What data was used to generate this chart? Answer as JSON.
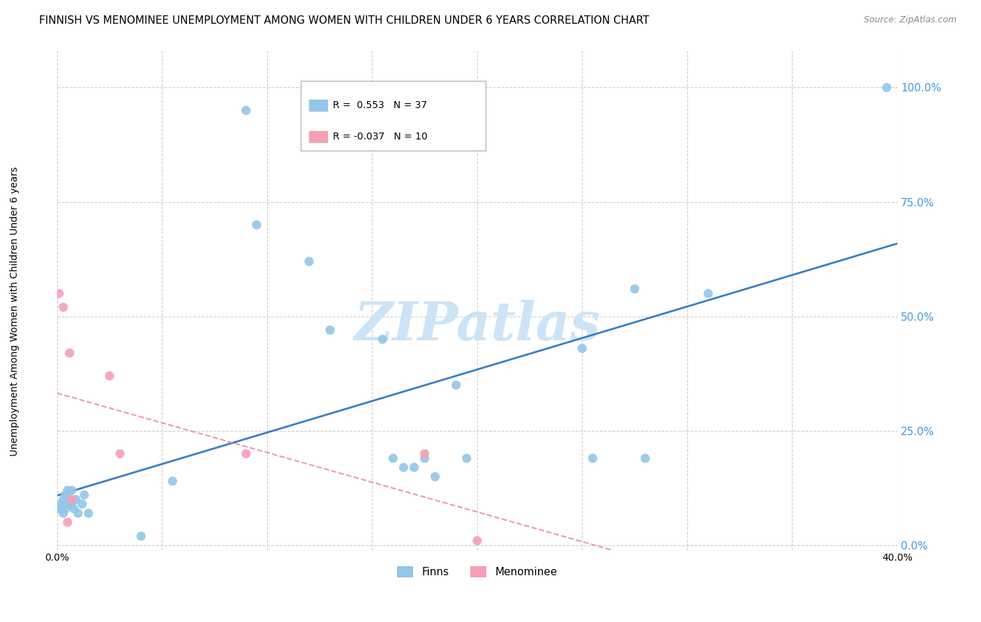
{
  "title": "FINNISH VS MENOMINEE UNEMPLOYMENT AMONG WOMEN WITH CHILDREN UNDER 6 YEARS CORRELATION CHART",
  "source": "Source: ZipAtlas.com",
  "ylabel": "Unemployment Among Women with Children Under 6 years",
  "xlabel": "",
  "watermark": "ZIPatlas",
  "xlim": [
    0.0,
    0.4
  ],
  "ylim": [
    -0.01,
    1.08
  ],
  "xticks": [
    0.0,
    0.05,
    0.1,
    0.15,
    0.2,
    0.25,
    0.3,
    0.35,
    0.4
  ],
  "yticks": [
    0.0,
    0.25,
    0.5,
    0.75,
    1.0
  ],
  "ytick_labels": [
    "0.0%",
    "25.0%",
    "50.0%",
    "75.0%",
    "100.0%"
  ],
  "xtick_labels": [
    "0.0%",
    "",
    "",
    "",
    "",
    "",
    "",
    "",
    "40.0%"
  ],
  "finns_x": [
    0.001,
    0.002,
    0.003,
    0.003,
    0.004,
    0.004,
    0.005,
    0.005,
    0.006,
    0.007,
    0.007,
    0.008,
    0.009,
    0.01,
    0.012,
    0.013,
    0.015,
    0.04,
    0.055,
    0.09,
    0.095,
    0.12,
    0.13,
    0.155,
    0.16,
    0.165,
    0.17,
    0.175,
    0.18,
    0.19,
    0.195,
    0.25,
    0.255,
    0.275,
    0.28,
    0.31,
    0.395
  ],
  "finns_y": [
    0.08,
    0.09,
    0.07,
    0.1,
    0.08,
    0.11,
    0.09,
    0.12,
    0.1,
    0.09,
    0.12,
    0.08,
    0.1,
    0.07,
    0.09,
    0.11,
    0.07,
    0.02,
    0.14,
    0.95,
    0.7,
    0.62,
    0.47,
    0.45,
    0.19,
    0.17,
    0.17,
    0.19,
    0.15,
    0.35,
    0.19,
    0.43,
    0.19,
    0.56,
    0.19,
    0.55,
    1.0
  ],
  "menominee_x": [
    0.001,
    0.003,
    0.005,
    0.006,
    0.007,
    0.025,
    0.03,
    0.09,
    0.175,
    0.2
  ],
  "menominee_y": [
    0.55,
    0.52,
    0.05,
    0.42,
    0.1,
    0.37,
    0.2,
    0.2,
    0.2,
    0.01
  ],
  "finns_color": "#93c6e8",
  "menominee_color": "#f4a0b5",
  "finns_line_color": "#3a7fc1",
  "menominee_line_color": "#e8889a",
  "finns_R": 0.553,
  "finns_N": 37,
  "menominee_R": -0.037,
  "menominee_N": 10,
  "legend_label_finns": "Finns",
  "legend_label_menominee": "Menominee",
  "grid_color": "#cccccc",
  "background_color": "#ffffff",
  "watermark_color": "#cce4f5",
  "title_fontsize": 11,
  "source_fontsize": 9
}
